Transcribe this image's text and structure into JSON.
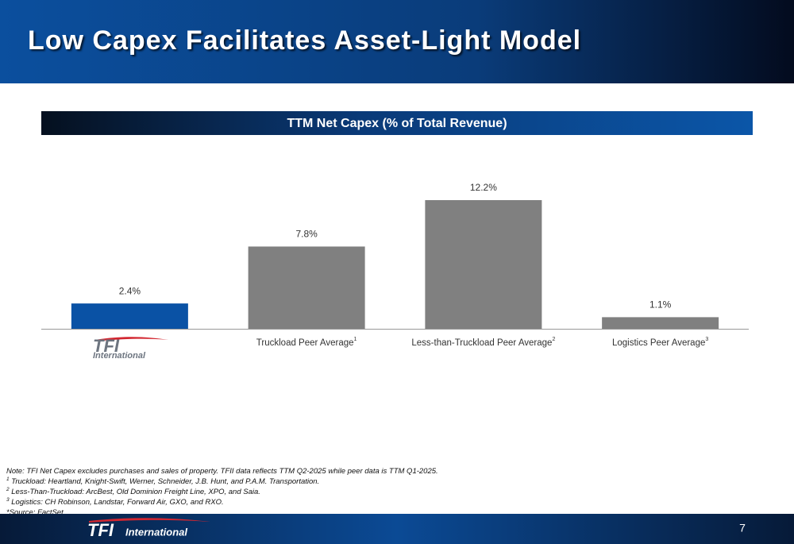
{
  "header": {
    "title": "Low Capex Facilitates Asset-Light Model"
  },
  "chart_data": {
    "type": "bar",
    "title": "TTM Net Capex (% of Total Revenue)",
    "categories": [
      null,
      "Truckload Peer Average",
      "Less-than-Truckload Peer Average",
      "Logistics Peer Average"
    ],
    "category_notes": [
      null,
      "1",
      "2",
      "3"
    ],
    "values": [
      2.4,
      7.8,
      12.2,
      1.1
    ],
    "value_labels": [
      "2.4%",
      "7.8%",
      "12.2%",
      "1.1%"
    ],
    "colors": [
      "#0a52a5",
      "#808080",
      "#808080",
      "#808080"
    ]
  },
  "logo": {
    "mark": "TFI",
    "word": "International"
  },
  "notes": [
    {
      "marker": null,
      "text": "Note: TFI Net Capex excludes purchases and sales of property. TFII data reflects TTM Q2-2025 while peer data is TTM Q1-2025."
    },
    {
      "marker": "1",
      "text": " Truckload: Heartland, Knight-Swift, Werner, Schneider, J.B. Hunt, and P.A.M. Transportation."
    },
    {
      "marker": "2",
      "text": " Less-Than-Truckload: ArcBest, Old Dominion Freight Line, XPO, and Saia."
    },
    {
      "marker": "3",
      "text": " Logistics: CH Robinson, Landstar, Forward Air, GXO, and RXO."
    },
    {
      "marker": null,
      "text": "*Source: FactSet"
    }
  ],
  "page_number": "7"
}
